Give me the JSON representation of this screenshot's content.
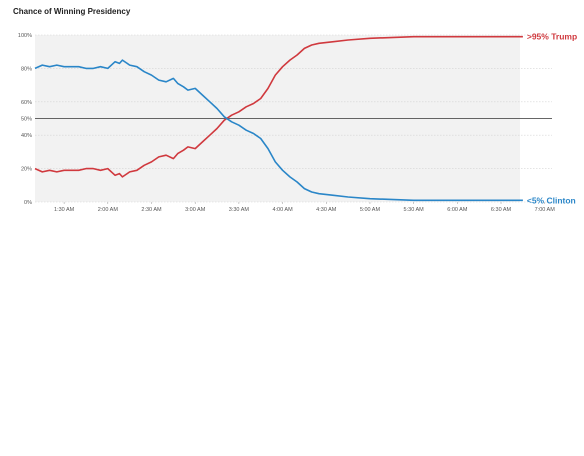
{
  "title": "Chance of Winning Presidency",
  "colors": {
    "trump": "#d0393e",
    "clinton": "#2a86c8",
    "band": "#f2f2f2",
    "grid": "#d4d4d4",
    "midline": "#333333"
  },
  "chart_data": {
    "type": "line",
    "title": "Chance of Winning Presidency",
    "xlabel": "",
    "ylabel": "",
    "x_ticks": [
      "1:30 AM",
      "2:00 AM",
      "2:30 AM",
      "3:00 AM",
      "3:30 AM",
      "4:00 AM",
      "4:30 AM",
      "5:00 AM",
      "5:30 AM",
      "6:00 AM",
      "6:30 AM",
      "7:00 AM"
    ],
    "y_ticks": [
      "100%",
      "80%",
      "60%",
      "50%",
      "40%",
      "20%",
      "0%"
    ],
    "ylim": [
      0,
      100
    ],
    "grid": true,
    "series": [
      {
        "name": "Trump",
        "end_label": ">95% Trump",
        "points": [
          [
            "1:10 AM",
            20
          ],
          [
            "1:15 AM",
            18
          ],
          [
            "1:20 AM",
            19
          ],
          [
            "1:25 AM",
            18
          ],
          [
            "1:30 AM",
            19
          ],
          [
            "1:40 AM",
            19
          ],
          [
            "1:45 AM",
            20
          ],
          [
            "1:50 AM",
            20
          ],
          [
            "1:55 AM",
            19
          ],
          [
            "2:00 AM",
            20
          ],
          [
            "2:05 AM",
            16
          ],
          [
            "2:08 AM",
            17
          ],
          [
            "2:10 AM",
            15
          ],
          [
            "2:15 AM",
            18
          ],
          [
            "2:20 AM",
            19
          ],
          [
            "2:25 AM",
            22
          ],
          [
            "2:30 AM",
            24
          ],
          [
            "2:35 AM",
            27
          ],
          [
            "2:40 AM",
            28
          ],
          [
            "2:45 AM",
            26
          ],
          [
            "2:48 AM",
            29
          ],
          [
            "2:52 AM",
            31
          ],
          [
            "2:55 AM",
            33
          ],
          [
            "3:00 AM",
            32
          ],
          [
            "3:05 AM",
            36
          ],
          [
            "3:10 AM",
            40
          ],
          [
            "3:15 AM",
            44
          ],
          [
            "3:20 AM",
            49
          ],
          [
            "3:25 AM",
            52
          ],
          [
            "3:30 AM",
            54
          ],
          [
            "3:35 AM",
            57
          ],
          [
            "3:40 AM",
            59
          ],
          [
            "3:45 AM",
            62
          ],
          [
            "3:50 AM",
            68
          ],
          [
            "3:55 AM",
            76
          ],
          [
            "4:00 AM",
            81
          ],
          [
            "4:05 AM",
            85
          ],
          [
            "4:10 AM",
            88
          ],
          [
            "4:15 AM",
            92
          ],
          [
            "4:20 AM",
            94
          ],
          [
            "4:25 AM",
            95
          ],
          [
            "4:35 AM",
            96
          ],
          [
            "4:45 AM",
            97
          ],
          [
            "5:00 AM",
            98
          ],
          [
            "5:30 AM",
            99
          ],
          [
            "6:00 AM",
            99
          ],
          [
            "6:30 AM",
            99
          ],
          [
            "6:45 AM",
            99
          ]
        ]
      },
      {
        "name": "Clinton",
        "end_label": "<5% Clinton",
        "points": [
          [
            "1:10 AM",
            80
          ],
          [
            "1:15 AM",
            82
          ],
          [
            "1:20 AM",
            81
          ],
          [
            "1:25 AM",
            82
          ],
          [
            "1:30 AM",
            81
          ],
          [
            "1:40 AM",
            81
          ],
          [
            "1:45 AM",
            80
          ],
          [
            "1:50 AM",
            80
          ],
          [
            "1:55 AM",
            81
          ],
          [
            "2:00 AM",
            80
          ],
          [
            "2:05 AM",
            84
          ],
          [
            "2:08 AM",
            83
          ],
          [
            "2:10 AM",
            85
          ],
          [
            "2:15 AM",
            82
          ],
          [
            "2:20 AM",
            81
          ],
          [
            "2:25 AM",
            78
          ],
          [
            "2:30 AM",
            76
          ],
          [
            "2:35 AM",
            73
          ],
          [
            "2:40 AM",
            72
          ],
          [
            "2:45 AM",
            74
          ],
          [
            "2:48 AM",
            71
          ],
          [
            "2:52 AM",
            69
          ],
          [
            "2:55 AM",
            67
          ],
          [
            "3:00 AM",
            68
          ],
          [
            "3:05 AM",
            64
          ],
          [
            "3:10 AM",
            60
          ],
          [
            "3:15 AM",
            56
          ],
          [
            "3:20 AM",
            51
          ],
          [
            "3:25 AM",
            48
          ],
          [
            "3:30 AM",
            46
          ],
          [
            "3:35 AM",
            43
          ],
          [
            "3:40 AM",
            41
          ],
          [
            "3:45 AM",
            38
          ],
          [
            "3:50 AM",
            32
          ],
          [
            "3:55 AM",
            24
          ],
          [
            "4:00 AM",
            19
          ],
          [
            "4:05 AM",
            15
          ],
          [
            "4:10 AM",
            12
          ],
          [
            "4:15 AM",
            8
          ],
          [
            "4:20 AM",
            6
          ],
          [
            "4:25 AM",
            5
          ],
          [
            "4:35 AM",
            4
          ],
          [
            "4:45 AM",
            3
          ],
          [
            "5:00 AM",
            2
          ],
          [
            "5:30 AM",
            1
          ],
          [
            "6:00 AM",
            1
          ],
          [
            "6:30 AM",
            1
          ],
          [
            "6:45 AM",
            1
          ]
        ]
      }
    ]
  }
}
